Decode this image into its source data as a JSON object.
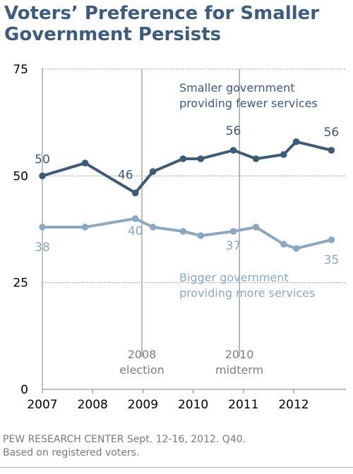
{
  "title": {
    "line1": "Voters’ Preference for Smaller",
    "line2": "Government Persists"
  },
  "source": {
    "line1": "PEW RESEARCH CENTER Sept. 12-16, 2012. Q40.",
    "line2": "Based on registered voters."
  },
  "colors": {
    "title": "#3b5c7e",
    "smaller": "#3d5b78",
    "bigger": "#8aa9c0",
    "axis_text": "#000000",
    "event_text": "#7f7f7f",
    "grid": "#888888"
  },
  "chart_data": {
    "type": "line",
    "xlim": [
      2007,
      2012.8
    ],
    "ylim": [
      0,
      75
    ],
    "x_ticks": [
      "2007",
      "2008",
      "2009",
      "2010",
      "2011",
      "2012"
    ],
    "y_ticks": [
      "0",
      "25",
      "50",
      "75"
    ],
    "grid": "horizontal dotted at 25, 50, 75",
    "events": [
      {
        "x": 2008.98,
        "label_lines": [
          "2008",
          "election"
        ]
      },
      {
        "x": 2010.92,
        "label_lines": [
          "2010",
          "midterm"
        ]
      }
    ],
    "series": [
      {
        "key": "smaller",
        "label_lines": [
          "Smaller government",
          "providing fewer services"
        ],
        "x": [
          2007.0,
          2007.85,
          2008.85,
          2009.2,
          2009.8,
          2010.15,
          2010.8,
          2011.25,
          2011.8,
          2012.05,
          2012.75
        ],
        "values": [
          50,
          53,
          46,
          51,
          54,
          54,
          56,
          54,
          55,
          58,
          56
        ],
        "data_labels": [
          {
            "index": 0,
            "text": "50"
          },
          {
            "index": 2,
            "text": "46"
          },
          {
            "index": 6,
            "text": "56"
          },
          {
            "index": 10,
            "text": "56"
          }
        ]
      },
      {
        "key": "bigger",
        "label_lines": [
          "Bigger government",
          "providing more services"
        ],
        "x": [
          2007.0,
          2007.85,
          2008.85,
          2009.2,
          2009.8,
          2010.15,
          2010.8,
          2011.25,
          2011.8,
          2012.05,
          2012.75
        ],
        "values": [
          38,
          38,
          40,
          38,
          37,
          36,
          37,
          38,
          34,
          33,
          35
        ],
        "data_labels": [
          {
            "index": 0,
            "text": "38"
          },
          {
            "index": 2,
            "text": "40"
          },
          {
            "index": 6,
            "text": "37"
          },
          {
            "index": 10,
            "text": "35"
          }
        ]
      }
    ]
  }
}
